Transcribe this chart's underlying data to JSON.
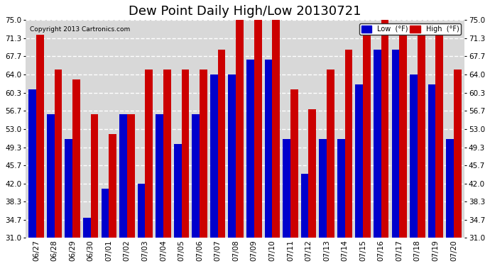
{
  "title": "Dew Point Daily High/Low 20130721",
  "copyright": "Copyright 2013 Cartronics.com",
  "dates": [
    "06/27",
    "06/28",
    "06/29",
    "06/30",
    "07/01",
    "07/02",
    "07/03",
    "07/04",
    "07/05",
    "07/06",
    "07/07",
    "07/08",
    "07/09",
    "07/10",
    "07/11",
    "07/12",
    "07/13",
    "07/14",
    "07/15",
    "07/16",
    "07/17",
    "07/18",
    "07/19",
    "07/20"
  ],
  "low": [
    61,
    56,
    51,
    35,
    41,
    56,
    42,
    56,
    50,
    56,
    64,
    64,
    67,
    67,
    51,
    44,
    51,
    51,
    62,
    69,
    69,
    64,
    62,
    51
  ],
  "high": [
    72,
    65,
    63,
    56,
    52,
    56,
    65,
    65,
    65,
    65,
    69,
    75,
    75,
    75,
    61,
    57,
    65,
    69,
    72,
    75,
    74,
    72,
    72,
    65
  ],
  "yticks": [
    31.0,
    34.7,
    38.3,
    42.0,
    45.7,
    49.3,
    53.0,
    56.7,
    60.3,
    64.0,
    67.7,
    71.3,
    75.0
  ],
  "ymin": 31.0,
  "ymax": 75.0,
  "low_color": "#0000cc",
  "high_color": "#cc0000",
  "bg_color": "#ffffff",
  "plot_bg_color": "#d8d8d8",
  "grid_color": "#ffffff",
  "bar_width": 0.42,
  "title_fontsize": 13,
  "tick_fontsize": 7.5
}
